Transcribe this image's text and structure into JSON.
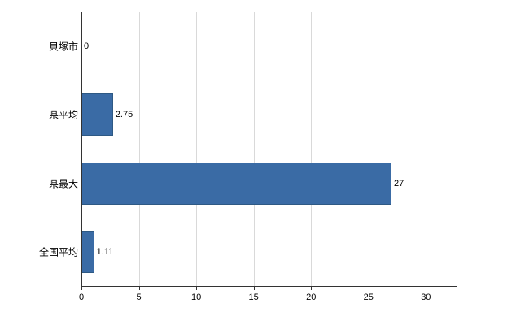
{
  "chart_data": {
    "type": "bar",
    "orientation": "horizontal",
    "title": "",
    "xlabel": "",
    "ylabel": "",
    "categories": [
      "貝塚市",
      "県平均",
      "県最大",
      "全国平均"
    ],
    "values": [
      0,
      2.75,
      27,
      1.11
    ],
    "value_labels": [
      "0",
      "2.75",
      "27",
      "1.11"
    ],
    "xlim": [
      0,
      32.6
    ],
    "xticks": [
      0,
      5,
      10,
      15,
      20,
      25,
      30
    ],
    "xtick_labels": [
      "0",
      "5",
      "10",
      "15",
      "20",
      "25",
      "30"
    ],
    "grid": true,
    "legend": "none",
    "colors": {
      "bar": "#3a6ba5",
      "bar_border": "#2e5984",
      "gridline": "#d9d9d9",
      "axis": "#333333",
      "text": "#000000",
      "background": "#ffffff"
    }
  }
}
